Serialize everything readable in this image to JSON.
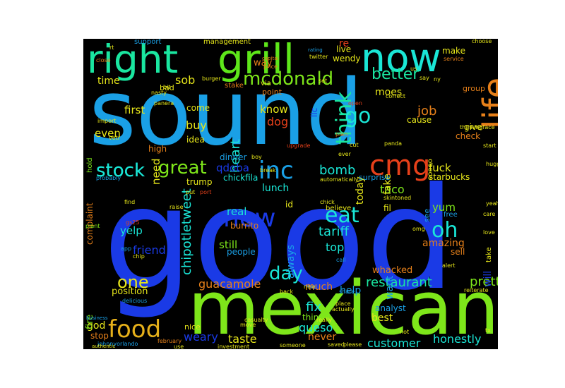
{
  "wordcloud": {
    "background": "#000000",
    "words": [
      {
        "text": "good",
        "color": "#1a3ae6"
      },
      {
        "text": "sound",
        "color": "#1aa0e6"
      },
      {
        "text": "mexican",
        "color": "#7ee61a"
      },
      {
        "text": "right",
        "color": "#1ae6a0"
      },
      {
        "text": "grill",
        "color": "#5ee61a"
      },
      {
        "text": "now",
        "color": "#1ae6d6"
      },
      {
        "text": "life",
        "color": "#e6801a"
      },
      {
        "text": "food",
        "color": "#e6b01a"
      },
      {
        "text": "cmg",
        "color": "#e6401a"
      },
      {
        "text": "inc",
        "color": "#1aa0e6"
      },
      {
        "text": "mcdonald",
        "color": "#7ee61a"
      },
      {
        "text": "stock",
        "color": "#1ae6d6"
      },
      {
        "text": "great",
        "color": "#7ee61a"
      },
      {
        "text": "think",
        "color": "#1ae6a0"
      },
      {
        "text": "new",
        "color": "#1a3ae6"
      },
      {
        "text": "eat",
        "color": "#1ae6d6"
      },
      {
        "text": "oh",
        "color": "#1ae6d6"
      },
      {
        "text": "go",
        "color": "#1ae6d6"
      },
      {
        "text": "better",
        "color": "#1ae6a0"
      },
      {
        "text": "one",
        "color": "#e6e61a"
      },
      {
        "text": "day",
        "color": "#1ae6d6"
      },
      {
        "text": "bomb",
        "color": "#1ae6d6"
      },
      {
        "text": "restaurant",
        "color": "#1ae6a0"
      },
      {
        "text": "chipotletweet",
        "color": "#1ae6d6"
      },
      {
        "text": "guacamole",
        "color": "#e6801a"
      },
      {
        "text": "tariff",
        "color": "#1ae6d6"
      },
      {
        "text": "pretty",
        "color": "#7ee61a"
      },
      {
        "text": "fix",
        "color": "#1ae6d6"
      },
      {
        "text": "queso",
        "color": "#1ae6d6"
      },
      {
        "text": "taste",
        "color": "#e6e61a"
      },
      {
        "text": "weary",
        "color": "#1a3ae6"
      },
      {
        "text": "customer",
        "color": "#1ae6d6"
      },
      {
        "text": "honestly",
        "color": "#1ae6d6"
      },
      {
        "text": "heart",
        "color": "#1ae6d6"
      },
      {
        "text": "sob",
        "color": "#e6e61a"
      },
      {
        "text": "qdoba",
        "color": "#1a3ae6"
      },
      {
        "text": "stock",
        "color": "#1ae6d6"
      },
      {
        "text": "yelp",
        "color": "#1ae6d6"
      },
      {
        "text": "friend",
        "color": "#1a3ae6"
      },
      {
        "text": "still",
        "color": "#7ee61a"
      },
      {
        "text": "real",
        "color": "#1ae6d6"
      },
      {
        "text": "dog",
        "color": "#e6401a"
      },
      {
        "text": "job",
        "color": "#e6801a"
      },
      {
        "text": "fuck",
        "color": "#e6e61a"
      },
      {
        "text": "taco",
        "color": "#7ee61a"
      },
      {
        "text": "yum",
        "color": "#7ee61a"
      },
      {
        "text": "today",
        "color": "#e6e61a"
      },
      {
        "text": "fake",
        "color": "#e6e61a"
      },
      {
        "text": "buy",
        "color": "#e6e61a"
      },
      {
        "text": "first",
        "color": "#e6e61a"
      },
      {
        "text": "even",
        "color": "#e6e61a"
      },
      {
        "text": "know",
        "color": "#e6e61a"
      },
      {
        "text": "moes",
        "color": "#e6e61a"
      },
      {
        "text": "time",
        "color": "#e6e61a"
      },
      {
        "text": "lunch",
        "color": "#1ae6d6"
      },
      {
        "text": "always",
        "color": "#1aa0e6"
      },
      {
        "text": "want",
        "color": "#1aa0e6"
      },
      {
        "text": "amazing",
        "color": "#e6801a"
      },
      {
        "text": "whacked",
        "color": "#e6801a"
      },
      {
        "text": "help",
        "color": "#1aa0e6"
      },
      {
        "text": "much",
        "color": "#e6801a"
      },
      {
        "text": "top",
        "color": "#1ae6d6"
      },
      {
        "text": "never",
        "color": "#e6801a"
      },
      {
        "text": "best",
        "color": "#e6e61a"
      },
      {
        "text": "god",
        "color": "#e6e61a"
      },
      {
        "text": "fire",
        "color": "#7ee61a"
      },
      {
        "text": "will",
        "color": "#1a3ae6"
      },
      {
        "text": "complaint",
        "color": "#e6801a"
      },
      {
        "text": "position",
        "color": "#e6e61a"
      },
      {
        "text": "starbucks",
        "color": "#e6e61a"
      },
      {
        "text": "give",
        "color": "#e6e61a"
      },
      {
        "text": "check",
        "color": "#e6801a"
      },
      {
        "text": "cause",
        "color": "#e6e61a"
      },
      {
        "text": "need",
        "color": "#e6e61a"
      },
      {
        "text": "come",
        "color": "#e6e61a"
      },
      {
        "text": "idea",
        "color": "#e6e61a"
      },
      {
        "text": "high",
        "color": "#e6801a"
      },
      {
        "text": "dinner",
        "color": "#1aa0e6"
      },
      {
        "text": "chickfila",
        "color": "#1ae6d6"
      },
      {
        "text": "trump",
        "color": "#e6e61a"
      },
      {
        "text": "burrito",
        "color": "#e6801a"
      },
      {
        "text": "people",
        "color": "#1aa0e6"
      },
      {
        "text": "believe",
        "color": "#e6e61a"
      },
      {
        "text": "sell",
        "color": "#e6801a"
      },
      {
        "text": "surprise",
        "color": "#1aa0e6"
      },
      {
        "text": "id",
        "color": "#e6e61a"
      },
      {
        "text": "fil",
        "color": "#e6e61a"
      },
      {
        "text": "thing",
        "color": "#7ee61a"
      },
      {
        "text": "analyst",
        "color": "#1aa0e6"
      },
      {
        "text": "stop",
        "color": "#e6801a"
      },
      {
        "text": "nice",
        "color": "#e6e61a"
      },
      {
        "text": "make",
        "color": "#e6e61a"
      },
      {
        "text": "group",
        "color": "#e6801a"
      },
      {
        "text": "wendy",
        "color": "#e6e61a"
      },
      {
        "text": "live",
        "color": "#e6e61a"
      },
      {
        "text": "llc",
        "color": "#1a3ae6"
      },
      {
        "text": "re",
        "color": "#e6401a"
      },
      {
        "text": "way",
        "color": "#e6801a"
      },
      {
        "text": "point",
        "color": "#e6801a"
      },
      {
        "text": "stake",
        "color": "#e6801a"
      },
      {
        "text": "management",
        "color": "#e6e61a"
      },
      {
        "text": "support",
        "color": "#1aa0e6"
      },
      {
        "text": "hold",
        "color": "#7ee61a"
      },
      {
        "text": "bad",
        "color": "#e6e61a"
      },
      {
        "text": "via",
        "color": "#e6e61a"
      },
      {
        "text": "soooo",
        "color": "#e6e61a"
      },
      {
        "text": "see",
        "color": "#1aa0e6"
      },
      {
        "text": "take",
        "color": "#e6e61a"
      },
      {
        "text": "free",
        "color": "#1aa0e6"
      },
      {
        "text": "johnnyorlando",
        "color": "#1aa0e6"
      },
      {
        "text": "close",
        "color": "#e6801a"
      },
      {
        "text": "business",
        "color": "#1aa0e6"
      },
      {
        "text": "authentic",
        "color": "#e6e61a"
      },
      {
        "text": "twitter",
        "color": "#e6e61a"
      },
      {
        "text": "rating",
        "color": "#1aa0e6"
      },
      {
        "text": "choose",
        "color": "#e6e61a"
      },
      {
        "text": "service",
        "color": "#e6801a"
      },
      {
        "text": "price",
        "color": "#e6801a"
      },
      {
        "text": "capital",
        "color": "#e6801a"
      },
      {
        "text": "february",
        "color": "#e6801a"
      },
      {
        "text": "plant",
        "color": "#7ee61a"
      },
      {
        "text": "raise",
        "color": "#e6e61a"
      },
      {
        "text": "find",
        "color": "#e6e61a"
      },
      {
        "text": "yeah",
        "color": "#e6e61a"
      },
      {
        "text": "love",
        "color": "#e6e61a"
      },
      {
        "text": "care",
        "color": "#e6e61a"
      },
      {
        "text": "start",
        "color": "#e6e61a"
      },
      {
        "text": "place",
        "color": "#e6e61a"
      },
      {
        "text": "call",
        "color": "#1aa0e6"
      },
      {
        "text": "alert",
        "color": "#e6e61a"
      },
      {
        "text": "ever",
        "color": "#e6e61a"
      },
      {
        "text": "plan",
        "color": "#e6801a"
      },
      {
        "text": "cut",
        "color": "#e6e61a"
      },
      {
        "text": "upgrade",
        "color": "#e6401a"
      },
      {
        "text": "open",
        "color": "#e6401a"
      },
      {
        "text": "correct",
        "color": "#e6e61a"
      },
      {
        "text": "say",
        "color": "#e6e61a"
      },
      {
        "text": "panda",
        "color": "#e6e61a"
      },
      {
        "text": "break",
        "color": "#e6e61a"
      },
      {
        "text": "port",
        "color": "#e6401a"
      },
      {
        "text": "put",
        "color": "#e6e61a"
      },
      {
        "text": "probably",
        "color": "#1aa0e6"
      },
      {
        "text": "nasty",
        "color": "#e6e61a"
      },
      {
        "text": "share",
        "color": "#1aa0e6"
      },
      {
        "text": "actually",
        "color": "#e6e61a"
      },
      {
        "text": "saved",
        "color": "#e6e61a"
      },
      {
        "text": "please",
        "color": "#e6e61a"
      },
      {
        "text": "someone",
        "color": "#e6e61a"
      },
      {
        "text": "investment",
        "color": "#e6e61a"
      },
      {
        "text": "casualty",
        "color": "#e6e61a"
      },
      {
        "text": "move",
        "color": "#e6e61a"
      },
      {
        "text": "back",
        "color": "#e6e61a"
      },
      {
        "text": "new",
        "color": "#e6e61a"
      },
      {
        "text": "use",
        "color": "#e6e61a"
      },
      {
        "text": "delicious",
        "color": "#1aa0e6"
      },
      {
        "text": "reiterate",
        "color": "#e6e61a"
      },
      {
        "text": "chip",
        "color": "#e6e61a"
      },
      {
        "text": "app",
        "color": "#1aa0e6"
      },
      {
        "text": "chick",
        "color": "#e6e61a"
      },
      {
        "text": "automatically",
        "color": "#e6e61a"
      },
      {
        "text": "skintoned",
        "color": "#e6e61a"
      },
      {
        "text": "thinkingface",
        "color": "#e6e61a"
      },
      {
        "text": "huggingface",
        "color": "#e6e61a"
      },
      {
        "text": "omg",
        "color": "#e6e61a"
      },
      {
        "text": "tx",
        "color": "#e6e61a"
      },
      {
        "text": "not",
        "color": "#e6e61a"
      },
      {
        "text": "vetr",
        "color": "#e6e61a"
      },
      {
        "text": "import",
        "color": "#e6e61a"
      },
      {
        "text": "boy",
        "color": "#e6e61a"
      },
      {
        "text": "panera",
        "color": "#e6e61a"
      },
      {
        "text": "burger",
        "color": "#e6e61a"
      },
      {
        "text": "ny",
        "color": "#e6e61a"
      },
      {
        "text": "us",
        "color": "#e6e61a"
      },
      {
        "text": "really",
        "color": "#e6e61a"
      },
      {
        "text": "gs25",
        "color": "#e6401a"
      },
      {
        "text": "bit",
        "color": "#e6e61a"
      },
      {
        "text": "set",
        "color": "#e6e61a"
      },
      {
        "text": "rt",
        "color": "#e6e61a"
      },
      {
        "text": "fl",
        "color": "#e6e61a"
      }
    ]
  }
}
